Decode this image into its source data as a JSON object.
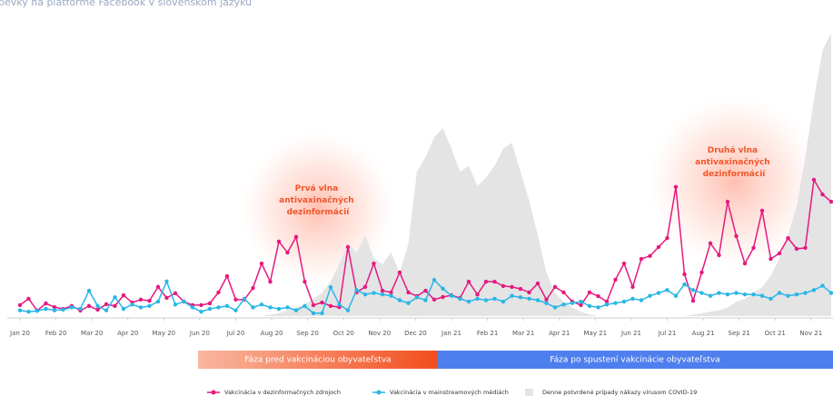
{
  "chart_data": {
    "type": "line",
    "title": "pevky na platforme Facebook v slovenskom jazyku",
    "xlim": [
      0,
      22.56
    ],
    "ylim": [
      0,
      100
    ],
    "xticks": [
      {
        "value": 0,
        "label": "Jan 20"
      },
      {
        "value": 1,
        "label": "Feb 20"
      },
      {
        "value": 2,
        "label": "Mar 20"
      },
      {
        "value": 3,
        "label": "Apr 20"
      },
      {
        "value": 4,
        "label": "May 20"
      },
      {
        "value": 5,
        "label": "Jun 20"
      },
      {
        "value": 6,
        "label": "Jul 20"
      },
      {
        "value": 7,
        "label": "Aug 20"
      },
      {
        "value": 8,
        "label": "Sep 20"
      },
      {
        "value": 9,
        "label": "Oct 20"
      },
      {
        "value": 10,
        "label": "Nov 20"
      },
      {
        "value": 11,
        "label": "Dec 20"
      },
      {
        "value": 12,
        "label": "Jan 21"
      },
      {
        "value": 13,
        "label": "Feb 21"
      },
      {
        "value": 14,
        "label": "Mar 21"
      },
      {
        "value": 15,
        "label": "Apr 21"
      },
      {
        "value": 16,
        "label": "May 21"
      },
      {
        "value": 17,
        "label": "Jun 21"
      },
      {
        "value": 18,
        "label": "Jul 21"
      },
      {
        "value": 19,
        "label": "Aug 21"
      },
      {
        "value": 20,
        "label": "Sep 21"
      },
      {
        "value": 21,
        "label": "Oct 21"
      },
      {
        "value": 22,
        "label": "Nov 21"
      }
    ],
    "x": [
      0,
      0.24,
      0.48,
      0.72,
      0.96,
      1.2,
      1.44,
      1.68,
      1.92,
      2.16,
      2.4,
      2.64,
      2.88,
      3.12,
      3.36,
      3.6,
      3.84,
      4.08,
      4.32,
      4.56,
      4.8,
      5.04,
      5.28,
      5.52,
      5.76,
      6,
      6.24,
      6.48,
      6.72,
      6.96,
      7.2,
      7.44,
      7.68,
      7.92,
      8.16,
      8.4,
      8.64,
      8.88,
      9.12,
      9.36,
      9.6,
      9.84,
      10.08,
      10.32,
      10.56,
      10.8,
      11.04,
      11.28,
      11.52,
      11.76,
      12,
      12.24,
      12.48,
      12.72,
      12.96,
      13.2,
      13.44,
      13.68,
      13.92,
      14.16,
      14.4,
      14.64,
      14.88,
      15.12,
      15.36,
      15.6,
      15.84,
      16.08,
      16.32,
      16.56,
      16.8,
      17.04,
      17.28,
      17.52,
      17.76,
      18,
      18.24,
      18.48,
      18.72,
      18.96,
      19.2,
      19.44,
      19.68,
      19.92,
      20.16,
      20.4,
      20.64,
      20.88,
      21.12,
      21.36,
      21.6,
      21.84,
      22.08,
      22.32,
      22.56
    ],
    "series": [
      {
        "name": "Vakcinácia v dezinformačných zdrojoch",
        "type": "line",
        "color": "#e5197f",
        "values": [
          3.8,
          6.0,
          1.9,
          4.4,
          3.1,
          2.5,
          3.5,
          1.9,
          3.5,
          2.2,
          4.1,
          3.5,
          7.2,
          4.7,
          5.7,
          5.3,
          10.1,
          6.3,
          7.9,
          5.0,
          3.8,
          3.8,
          4.4,
          8.2,
          13.8,
          5.7,
          5.7,
          9.7,
          18.2,
          11.9,
          25.8,
          22.0,
          27.4,
          11.9,
          3.8,
          4.7,
          3.5,
          3.1,
          23.9,
          8.2,
          10.1,
          18.2,
          8.8,
          8.2,
          15.1,
          8.2,
          6.9,
          8.8,
          5.7,
          6.6,
          7.2,
          6.3,
          11.9,
          7.5,
          11.9,
          11.9,
          10.4,
          10.1,
          9.4,
          8.2,
          11.3,
          5.7,
          10.1,
          8.2,
          5.0,
          3.8,
          8.2,
          6.9,
          5.0,
          12.6,
          18.2,
          10.1,
          19.8,
          20.8,
          23.9,
          27.0,
          44.7,
          14.5,
          5.3,
          15.1,
          25.2,
          21.1,
          39.6,
          27.7,
          18.2,
          23.6,
          36.5,
          19.8,
          21.7,
          27.0,
          23.3,
          23.6,
          47.2,
          42.1,
          39.6
        ]
      },
      {
        "name": "Vakcinácia v mainstreamových médiách",
        "type": "line",
        "color": "#29b6e6",
        "values": [
          2,
          1.5,
          1.8,
          2.5,
          2,
          2.2,
          3,
          2.5,
          8.8,
          3.5,
          2,
          6.5,
          2.5,
          4,
          3,
          3.5,
          5,
          12,
          4,
          5,
          3,
          1.5,
          2.5,
          3,
          3.5,
          2,
          6,
          3,
          4,
          3,
          2.5,
          3,
          2,
          3.5,
          1,
          1,
          10,
          4,
          2,
          9,
          7.5,
          8,
          7.5,
          7,
          5.5,
          4.5,
          6.5,
          5.5,
          12.5,
          9.5,
          7,
          6,
          5,
          6,
          5.5,
          6,
          5,
          7,
          6.5,
          6,
          5.5,
          4.5,
          3,
          4,
          4.5,
          5,
          3.5,
          3,
          4,
          4.5,
          5,
          6,
          5.5,
          7,
          8,
          9,
          7,
          11,
          9,
          8,
          7,
          8,
          7.5,
          8,
          7.5,
          7.5,
          7,
          6,
          8,
          7,
          7.5,
          8,
          9,
          10.5,
          8
        ]
      },
      {
        "name": "Denne potvrdené prípady nákazy vírusom COVID-19",
        "type": "area",
        "color": "#e4e4e4",
        "values": [
          0,
          0,
          0,
          0,
          0,
          0,
          0,
          0,
          0,
          0,
          0,
          0,
          0,
          0,
          0,
          0,
          0,
          0,
          0,
          0,
          0,
          0,
          0,
          0,
          0,
          0,
          0,
          0,
          0,
          0.5,
          1,
          2,
          3,
          4,
          6,
          8,
          12,
          18,
          25,
          22,
          28,
          20,
          18,
          22,
          15,
          25,
          50,
          55,
          62,
          65,
          58,
          50,
          52,
          45,
          48,
          52,
          58,
          60,
          50,
          40,
          28,
          15,
          8,
          5,
          3,
          1.5,
          0.5,
          0,
          0,
          0,
          0,
          0,
          0,
          0,
          0,
          0,
          0,
          0,
          0.5,
          1,
          1.5,
          2,
          3,
          5,
          6,
          8,
          10,
          14,
          20,
          28,
          38,
          55,
          75,
          92,
          98
        ]
      }
    ],
    "annotations": [
      {
        "lines": [
          "Prvá vlna",
          "antivaxinačných",
          "dezinformácií"
        ]
      },
      {
        "lines": [
          "Druhá vlna",
          "antivaxinačných",
          "dezinformácií"
        ]
      }
    ],
    "phases": [
      {
        "label": "Fáza pred vakcináciou obyvateľstva"
      },
      {
        "label": "Fáza po spustení vakcinácie obyvateľstva"
      }
    ]
  }
}
